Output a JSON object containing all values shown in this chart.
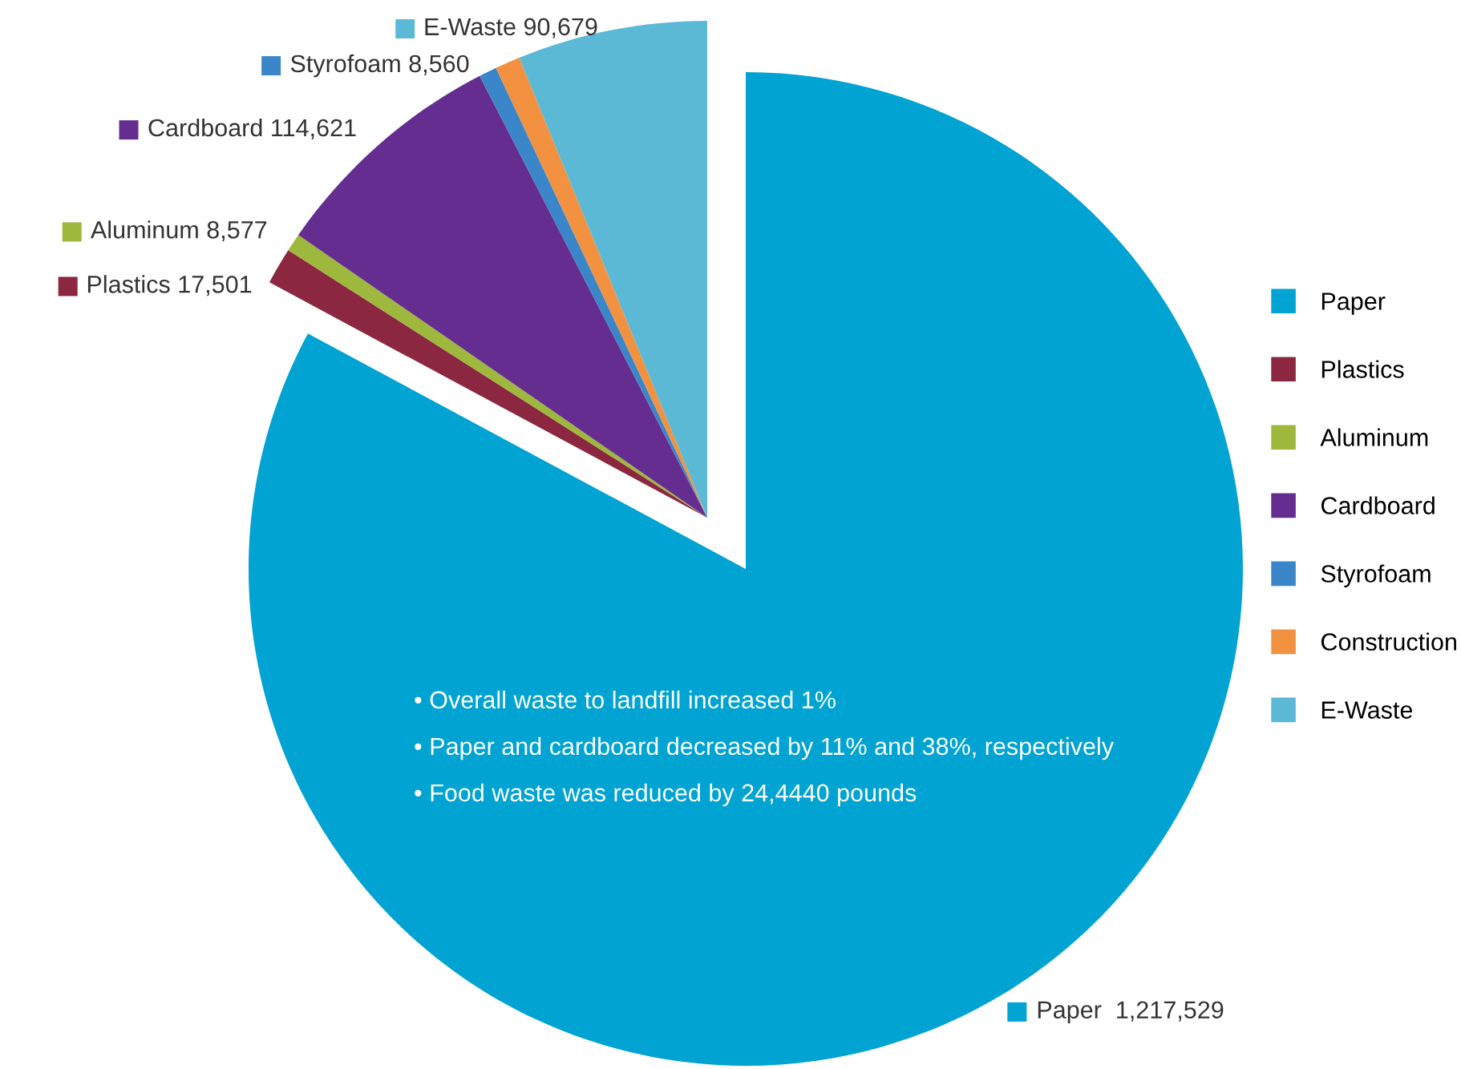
{
  "chart_data": {
    "type": "pie",
    "categories": [
      "Paper",
      "Plastics",
      "Aluminum",
      "Cardboard",
      "Styrofoam",
      "Construction",
      "E-Waste"
    ],
    "values": [
      1217529,
      17501,
      8577,
      114621,
      8560,
      12000,
      90679
    ],
    "colors": [
      "#00a3d2",
      "#8b2740",
      "#9db83c",
      "#652d90",
      "#3a86c8",
      "#f29140",
      "#5bb9d6"
    ],
    "value_labels": [
      "Paper  1,217,529",
      "Plastics 17,501",
      "Aluminum 8,577",
      "Cardboard 114,621",
      "Styrofoam 8,560",
      null,
      "E-Waste 90,679"
    ],
    "legend": "right",
    "annotations": [
      "• Overall waste to landfill increased 1%",
      "• Paper and cardboard decreased by 11% and 38%, respectively",
      "• Food waste was reduced by 24,4440 pounds"
    ]
  }
}
